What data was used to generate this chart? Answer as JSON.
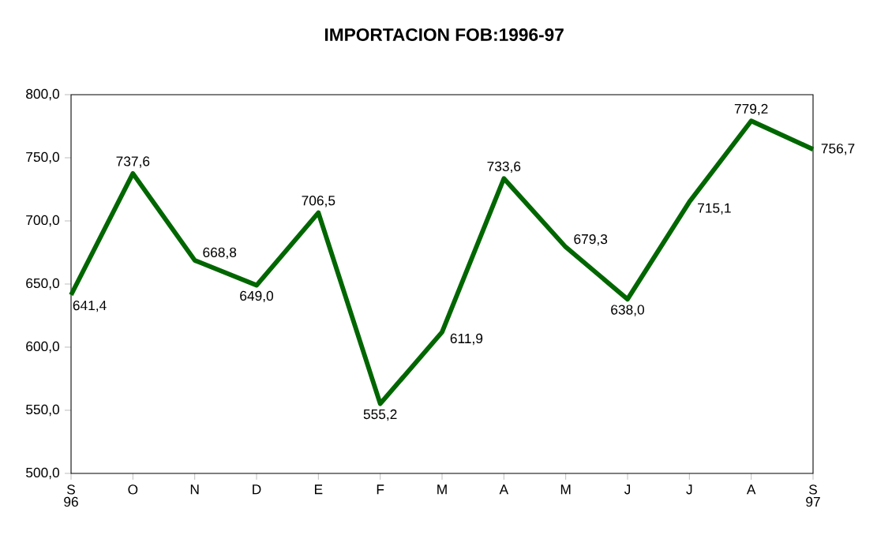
{
  "chart_data": {
    "type": "line",
    "title": "IMPORTACION FOB:1996-97",
    "categories": [
      "S",
      "O",
      "N",
      "D",
      "E",
      "F",
      "M",
      "A",
      "M",
      "J",
      "J",
      "A",
      "S"
    ],
    "values": [
      641.4,
      737.6,
      668.8,
      649.0,
      706.5,
      555.2,
      611.9,
      733.6,
      679.3,
      638.0,
      715.1,
      779.2,
      756.7
    ],
    "value_labels": [
      "641,4",
      "737,6",
      "668,8",
      "649,0",
      "706,5",
      "555,2",
      "611,9",
      "733,6",
      "679,3",
      "638,0",
      "715,1",
      "779,2",
      "756,7"
    ],
    "color": "#006600",
    "marker": "none",
    "line_style": "solid",
    "grid": false,
    "ylim": [
      500,
      800
    ],
    "yticks": [
      {
        "value": 500,
        "label": "500,0"
      },
      {
        "value": 550,
        "label": "550,0"
      },
      {
        "value": 600,
        "label": "600,0"
      },
      {
        "value": 650,
        "label": "650,0"
      },
      {
        "value": 700,
        "label": "700,0"
      },
      {
        "value": 750,
        "label": "750,0"
      },
      {
        "value": 800,
        "label": "800,0"
      }
    ],
    "annotations": [
      "96",
      "97"
    ]
  }
}
